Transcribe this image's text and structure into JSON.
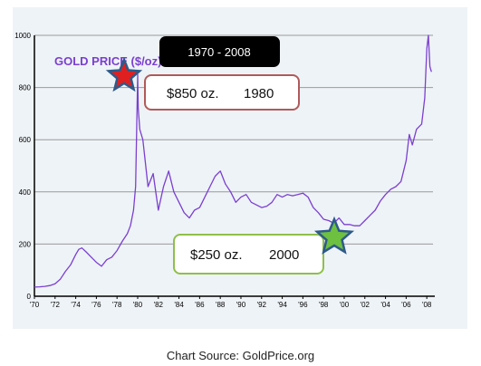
{
  "chart_data": {
    "type": "line",
    "title": "GOLD PRICE ($/oz)",
    "xlabel": "",
    "ylabel": "",
    "xlim": [
      1970,
      2008.6
    ],
    "ylim": [
      0,
      1000
    ],
    "x_ticks": [
      1970,
      1972,
      1974,
      1976,
      1978,
      1980,
      1982,
      1984,
      1986,
      1988,
      1990,
      1992,
      1994,
      1996,
      1998,
      2000,
      2002,
      2004,
      2006,
      2008
    ],
    "x_tick_labels": [
      "'70",
      "'72",
      "'74",
      "'76",
      "'78",
      "'80",
      "'82",
      "'84",
      "'86",
      "'88",
      "'90",
      "'92",
      "'94",
      "'96",
      "'98",
      "'00",
      "'02",
      "'04",
      "'06",
      "'08"
    ],
    "y_ticks": [
      0,
      200,
      400,
      600,
      800,
      1000
    ],
    "y_tick_labels": [
      "0",
      "200",
      "400",
      "600",
      "800",
      "1000"
    ],
    "grid": true,
    "series": [
      {
        "color": "#7b3fd0",
        "x": [
          1970,
          1970.5,
          1971,
          1971.5,
          1972,
          1972.5,
          1973,
          1973.5,
          1974,
          1974.3,
          1974.6,
          1975,
          1975.5,
          1976,
          1976.5,
          1977,
          1977.5,
          1978,
          1978.5,
          1979,
          1979.3,
          1979.6,
          1979.8,
          1980,
          1980.05,
          1980.2,
          1980.5,
          1981,
          1981.5,
          1982,
          1982.5,
          1983,
          1983.5,
          1984,
          1984.5,
          1985,
          1985.5,
          1986,
          1986.5,
          1987,
          1987.5,
          1988,
          1988.5,
          1989,
          1989.5,
          1990,
          1990.5,
          1991,
          1991.5,
          1992,
          1992.5,
          1993,
          1993.5,
          1994,
          1994.5,
          1995,
          1995.5,
          1996,
          1996.5,
          1997,
          1997.5,
          1998,
          1998.5,
          1999,
          1999.5,
          2000,
          2000.5,
          2001,
          2001.5,
          2002,
          2002.5,
          2003,
          2003.5,
          2004,
          2004.5,
          2005,
          2005.5,
          2006,
          2006.3,
          2006.6,
          2007,
          2007.5,
          2007.8,
          2008,
          2008.15,
          2008.3,
          2008.45
        ],
        "values": [
          35,
          36,
          38,
          41,
          48,
          65,
          95,
          120,
          160,
          180,
          185,
          170,
          150,
          130,
          115,
          140,
          150,
          175,
          210,
          240,
          270,
          330,
          420,
          850,
          720,
          640,
          600,
          420,
          470,
          330,
          420,
          480,
          400,
          360,
          320,
          300,
          330,
          340,
          380,
          420,
          460,
          480,
          430,
          400,
          360,
          380,
          390,
          360,
          350,
          340,
          345,
          360,
          390,
          380,
          390,
          385,
          390,
          395,
          380,
          340,
          320,
          295,
          290,
          280,
          300,
          275,
          275,
          270,
          270,
          290,
          310,
          330,
          365,
          390,
          410,
          420,
          440,
          520,
          620,
          580,
          640,
          660,
          760,
          950,
          1000,
          880,
          860
        ]
      }
    ]
  },
  "title_box": {
    "text": "1970 - 2008"
  },
  "callouts": [
    {
      "price": "$850 oz.",
      "year": "1980",
      "border": "#b05a5a",
      "star_color": "#e02020",
      "star_stroke": "#2e5a8a"
    },
    {
      "price": "$250 oz.",
      "year": "2000",
      "border": "#8fbf4a",
      "star_color": "#6dc040",
      "star_stroke": "#2e5a8a"
    }
  ],
  "source": {
    "text": "Chart Source: GoldPrice.org"
  }
}
